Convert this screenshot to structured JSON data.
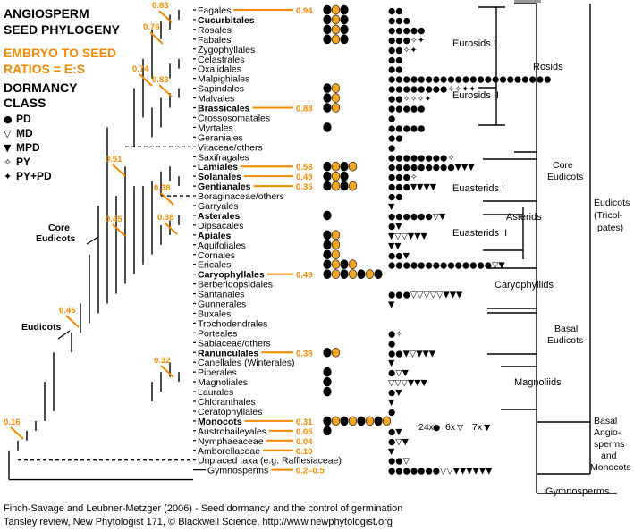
{
  "header": {
    "title_line1": "ANGIOSPERM",
    "title_line2": "SEED PHYLOGENY",
    "subtitle_line1": "EMBRYO TO SEED",
    "subtitle_line2": "RATIOS = E:S",
    "dormancy_line1": "DORMANCY",
    "dormancy_line2": "CLASS"
  },
  "legend": [
    {
      "symbol": "●",
      "label": "PD"
    },
    {
      "symbol": "▽",
      "label": "MD"
    },
    {
      "symbol": "▼",
      "label": "MPD"
    },
    {
      "symbol": "✧",
      "label": "PY"
    },
    {
      "symbol": "✦",
      "label": "PY+PD"
    }
  ],
  "taxa": [
    {
      "name": "Fagales",
      "bold": false,
      "ratio": "0.94",
      "seeds": 3,
      "dormancy": "●●"
    },
    {
      "name": "Cucurbitales",
      "bold": true,
      "ratio": "",
      "seeds": 3,
      "dormancy": "●●●"
    },
    {
      "name": "Rosales",
      "bold": false,
      "ratio": "",
      "seeds": 3,
      "dormancy": "●●●●●"
    },
    {
      "name": "Fabales",
      "bold": false,
      "ratio": "",
      "seeds": 3,
      "dormancy": "●●●✧✦"
    },
    {
      "name": "Zygophyllales",
      "bold": false,
      "ratio": "",
      "seeds": 0,
      "dormancy": "●●✧✦"
    },
    {
      "name": "Celastrales",
      "bold": false,
      "ratio": "",
      "seeds": 0,
      "dormancy": "●●"
    },
    {
      "name": "Oxalidales",
      "bold": false,
      "ratio": "",
      "seeds": 0,
      "dormancy": "●●"
    },
    {
      "name": "Malpighiales",
      "bold": false,
      "ratio": "",
      "seeds": 0,
      "dormancy": "●●●●●●●●●●●●●●●●●●●●●●"
    },
    {
      "name": "Sapindales",
      "bold": false,
      "ratio": "",
      "seeds": 2,
      "dormancy": "●●●●●●●●✧✧✦✦"
    },
    {
      "name": "Malvales",
      "bold": false,
      "ratio": "",
      "seeds": 2,
      "dormancy": "●●✧✧✧✦"
    },
    {
      "name": "Brassicales",
      "bold": true,
      "ratio": "0.88",
      "seeds": 2,
      "dormancy": "●●●●●"
    },
    {
      "name": "Crossosomatales",
      "bold": false,
      "ratio": "",
      "seeds": 0,
      "dormancy": "●"
    },
    {
      "name": "Myrtales",
      "bold": false,
      "ratio": "",
      "seeds": 1,
      "dormancy": "●●●●●"
    },
    {
      "name": "Geraniales",
      "bold": false,
      "ratio": "",
      "seeds": 0,
      "dormancy": "●●"
    },
    {
      "name": "Vitaceae/others",
      "bold": false,
      "ratio": "",
      "seeds": 0,
      "dormancy": "●"
    },
    {
      "name": "Saxifragales",
      "bold": false,
      "ratio": "",
      "seeds": 0,
      "dormancy": "●●●●●●●●✧"
    },
    {
      "name": "Lamiales",
      "bold": true,
      "ratio": "0.58",
      "seeds": 4,
      "dormancy": "●●●●●●●●●▼▼▼"
    },
    {
      "name": "Solanales",
      "bold": true,
      "ratio": "0.49",
      "seeds": 3,
      "dormancy": "●●●✧"
    },
    {
      "name": "Gentianales",
      "bold": true,
      "ratio": "0.35",
      "seeds": 4,
      "dormancy": "●●●▼▼▼▼"
    },
    {
      "name": "Boraginaceae/others",
      "bold": false,
      "ratio": "",
      "seeds": 0,
      "dormancy": "●●"
    },
    {
      "name": "Garryales",
      "bold": false,
      "ratio": "",
      "seeds": 0,
      "dormancy": "▼"
    },
    {
      "name": "Asterales",
      "bold": true,
      "ratio": "",
      "seeds": 1,
      "dormancy": "●●●●●●▽▼"
    },
    {
      "name": "Dipsacales",
      "bold": false,
      "ratio": "",
      "seeds": 0,
      "dormancy": "●▼"
    },
    {
      "name": "Apiales",
      "bold": true,
      "ratio": "",
      "seeds": 2,
      "dormancy": "▼▽▽▼▼▼"
    },
    {
      "name": "Aquifoliales",
      "bold": false,
      "ratio": "",
      "seeds": 2,
      "dormancy": "▼▼"
    },
    {
      "name": "Cornales",
      "bold": false,
      "ratio": "",
      "seeds": 2,
      "dormancy": "●●▼"
    },
    {
      "name": "Ericales",
      "bold": false,
      "ratio": "",
      "seeds": 4,
      "dormancy": "●●●●●●●●●●●●●●▽▼"
    },
    {
      "name": "Caryophyllales",
      "bold": true,
      "ratio": "0.49",
      "seeds": 7,
      "dormancy": ""
    },
    {
      "name": "Berberidopsidales",
      "bold": false,
      "ratio": "",
      "seeds": 0,
      "dormancy": ""
    },
    {
      "name": "Santanales",
      "bold": false,
      "ratio": "",
      "seeds": 0,
      "dormancy": "●●●▽▽▽▽▽▼▼▼"
    },
    {
      "name": "Gunnerales",
      "bold": false,
      "ratio": "",
      "seeds": 0,
      "dormancy": "▼"
    },
    {
      "name": "Buxales",
      "bold": false,
      "ratio": "",
      "seeds": 0,
      "dormancy": ""
    },
    {
      "name": "Trochodendrales",
      "bold": false,
      "ratio": "",
      "seeds": 0,
      "dormancy": ""
    },
    {
      "name": "Porteales",
      "bold": false,
      "ratio": "",
      "seeds": 0,
      "dormancy": "●✧"
    },
    {
      "name": "Sabiaceae/others",
      "bold": false,
      "ratio": "",
      "seeds": 0,
      "dormancy": "●"
    },
    {
      "name": "Ranunculales",
      "bold": true,
      "ratio": "0.38",
      "seeds": 2,
      "dormancy": "●●▼▽▼▼▼"
    },
    {
      "name": "Canellales (Winterales)",
      "bold": false,
      "ratio": "",
      "seeds": 0,
      "dormancy": "▼"
    },
    {
      "name": "Piperales",
      "bold": false,
      "ratio": "",
      "seeds": 1,
      "dormancy": "●▽▼"
    },
    {
      "name": "Magnoliales",
      "bold": false,
      "ratio": "",
      "seeds": 1,
      "dormancy": "▽▽▽▼▼▼"
    },
    {
      "name": "Laurales",
      "bold": false,
      "ratio": "",
      "seeds": 1,
      "dormancy": "●▼"
    },
    {
      "name": "Chloranthales",
      "bold": false,
      "ratio": "",
      "seeds": 0,
      "dormancy": "▼"
    },
    {
      "name": "Ceratophyllales",
      "bold": false,
      "ratio": "",
      "seeds": 0,
      "dormancy": "●"
    },
    {
      "name": "Monocots",
      "bold": true,
      "ratio": "0.31",
      "seeds": 8,
      "dormancy": ""
    },
    {
      "name": "Austrobaileyales",
      "bold": false,
      "ratio": "0.05",
      "seeds": 1,
      "dormancy": "●▼"
    },
    {
      "name": "Nymphaeaceae",
      "bold": false,
      "ratio": "0.04",
      "seeds": 0,
      "dormancy": "●▽▼"
    },
    {
      "name": "Amborellaceae",
      "bold": false,
      "ratio": "0.10",
      "seeds": 0,
      "dormancy": "▼"
    },
    {
      "name": "Unplaced taxa (e.g. Rafflesiaceae)",
      "bold": false,
      "ratio": "",
      "seeds": 0,
      "dormancy": "●●▽"
    },
    {
      "name": "Gymnosperms",
      "bold": false,
      "ratio": "0.2–0.5",
      "seeds": 0,
      "dormancy": "●●●●●●●▽▽▼▼▼▼▼▼"
    }
  ],
  "monocot_counts": {
    "pd": "24x",
    "md": "6x",
    "mpd": "7x"
  },
  "node_ratios": [
    "0.83",
    "0.76",
    "0.74",
    "0.83",
    "0.51",
    "0.38",
    "0.45",
    "0.38",
    "0.46",
    "0.32",
    "0.16"
  ],
  "node_labels": {
    "core_line1": "Core",
    "core_line2": "Eudicots",
    "eudicots": "Eudicots"
  },
  "clades": {
    "eurosids1": "Eurosids I",
    "rosids": "Rosids",
    "eurosids2": "Eurosids II",
    "euasterids1": "Euasterids I",
    "asterids": "Asterids",
    "euasterids2": "Euasterids II",
    "caryophyllids": "Caryophyllids",
    "core_eudicots_1": "Core",
    "core_eudicots_2": "Eudicots",
    "eudicots_1": "Eudicots",
    "eudicots_2": "(Tricol-",
    "eudicots_3": "pates)",
    "basal_eudicots_1": "Basal",
    "basal_eudicots_2": "Eudicots",
    "magnoliids": "Magnoliids",
    "basal_angio_1": "Basal",
    "basal_angio_2": "Angio-",
    "basal_angio_3": "sperms",
    "basal_angio_4": "and",
    "basal_angio_5": "Monocots",
    "gymnosperms": "Gymnosperms"
  },
  "footer": {
    "line1": "Finch-Savage and Leubner-Metzger (2006) - Seed dormancy and the control of germination",
    "line2": "Tansley review, New Phytologist 171, © Blackwell Science, http://www.newphytologist.org"
  },
  "colors": {
    "accent": "#f08a00",
    "ink": "#000000",
    "seed_fill": "#f5a623"
  }
}
